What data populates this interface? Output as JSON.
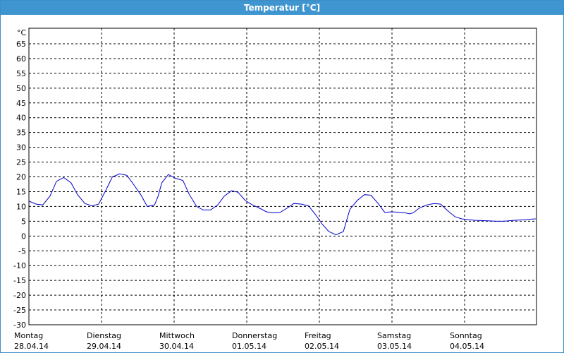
{
  "chart_data": {
    "type": "line",
    "title": "Temperatur [°C]",
    "ylabel": "°C",
    "ylim": [
      -30,
      65
    ],
    "yticks": [
      65,
      60,
      55,
      50,
      45,
      40,
      35,
      30,
      25,
      20,
      15,
      10,
      5,
      0,
      -5,
      -10,
      -15,
      -20,
      -25,
      -30
    ],
    "xlim": [
      0,
      7
    ],
    "xticks": [
      {
        "day": "Montag",
        "date": "28.04.14"
      },
      {
        "day": "Dienstag",
        "date": "29.04.14"
      },
      {
        "day": "Mittwoch",
        "date": "30.04.14"
      },
      {
        "day": "Donnerstag",
        "date": "01.05.14"
      },
      {
        "day": "Freitag",
        "date": "02.05.14"
      },
      {
        "day": "Samstag",
        "date": "03.05.14"
      },
      {
        "day": "Sonntag",
        "date": "04.05.14"
      }
    ],
    "grid": true,
    "line_color": "#0000cc",
    "series": [
      {
        "x": [
          0.0,
          0.1,
          0.19,
          0.29,
          0.38,
          0.48,
          0.58,
          0.67,
          0.77,
          0.87,
          0.96,
          1.06,
          1.15,
          1.25,
          1.35,
          1.44,
          1.54,
          1.63,
          1.73,
          1.78,
          1.83,
          1.92,
          2.02,
          2.12,
          2.21,
          2.31,
          2.4,
          2.5,
          2.6,
          2.69,
          2.79,
          2.88,
          2.98,
          3.08,
          3.17,
          3.27,
          3.37,
          3.46,
          3.56,
          3.65,
          3.75,
          3.85,
          3.94,
          4.04,
          4.13,
          4.23,
          4.33,
          4.42,
          4.52,
          4.62,
          4.71,
          4.81,
          4.9,
          5.0,
          5.1,
          5.19,
          5.24,
          5.29,
          5.38,
          5.48,
          5.58,
          5.67,
          5.77,
          5.87,
          5.96,
          6.06,
          6.15,
          6.25,
          6.35,
          6.44,
          6.54,
          6.63,
          6.73,
          6.83,
          6.92,
          6.98
        ],
        "y": [
          11.8,
          10.8,
          10.5,
          13.5,
          18.5,
          19.8,
          18.0,
          14.0,
          11.0,
          10.2,
          10.8,
          15.5,
          20.0,
          21.0,
          20.5,
          17.5,
          14.0,
          10.0,
          10.5,
          13.5,
          18.0,
          20.8,
          19.5,
          18.8,
          14.0,
          10.0,
          8.8,
          8.8,
          10.5,
          13.5,
          15.3,
          14.8,
          12.0,
          10.5,
          9.5,
          8.2,
          7.8,
          8.0,
          9.5,
          11.0,
          10.8,
          10.2,
          7.5,
          4.0,
          1.5,
          0.4,
          1.5,
          9.0,
          12.0,
          14.0,
          13.8,
          11.0,
          8.0,
          8.2,
          8.0,
          7.8,
          7.5,
          7.8,
          9.5,
          10.5,
          11.0,
          10.8,
          8.5,
          6.5,
          5.8,
          5.5,
          5.3,
          5.2,
          5.1,
          5.0,
          5.0,
          5.2,
          5.4,
          5.5,
          5.7,
          5.8
        ]
      }
    ]
  }
}
